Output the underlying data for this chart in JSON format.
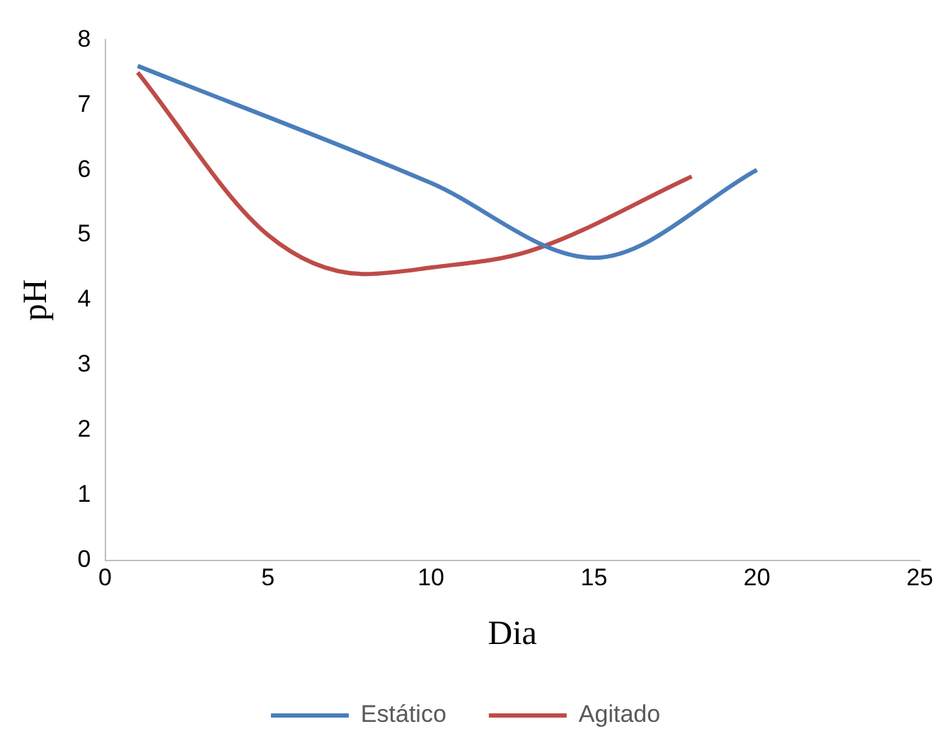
{
  "chart_data": {
    "type": "line",
    "xlabel": "Dia",
    "ylabel": "pH",
    "xlim": [
      0,
      25
    ],
    "xticks": [
      0,
      5,
      10,
      15,
      20,
      25
    ],
    "ylim": [
      0,
      8
    ],
    "yticks": [
      0,
      1,
      2,
      3,
      4,
      5,
      6,
      7,
      8
    ],
    "grid": false,
    "legend": "bottom",
    "marker": "none",
    "line_style": "solid",
    "series": [
      {
        "name": "Estático",
        "color": "#4a7ebb",
        "x": [
          1,
          10,
          15,
          20
        ],
        "values": [
          7.6,
          5.8,
          4.65,
          6.0
        ]
      },
      {
        "name": "Agitado",
        "color": "#be4b48",
        "x": [
          1,
          5,
          8,
          10,
          13,
          18
        ],
        "values": [
          7.5,
          5.0,
          4.4,
          4.5,
          4.75,
          5.9
        ]
      }
    ]
  }
}
